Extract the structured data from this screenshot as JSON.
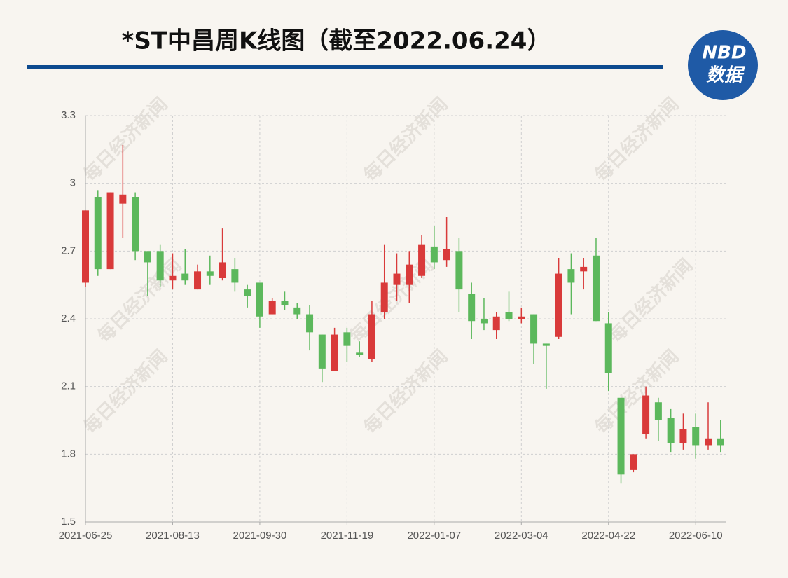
{
  "chart_data": {
    "type": "candlestick",
    "title": "*ST中昌周K线图（截至2022.06.24）",
    "logo": [
      "NBD",
      "数据"
    ],
    "watermark": "每日经济新闻",
    "categories": [
      "2021-06-25",
      null,
      null,
      null,
      null,
      null,
      null,
      "2021-08-13",
      null,
      null,
      null,
      null,
      null,
      null,
      "2021-09-30",
      null,
      null,
      null,
      null,
      null,
      null,
      "2021-11-19",
      null,
      null,
      null,
      null,
      null,
      null,
      "2022-01-07",
      null,
      null,
      null,
      null,
      null,
      null,
      "2022-03-04",
      null,
      null,
      null,
      null,
      null,
      null,
      "2022-04-22",
      null,
      null,
      null,
      null,
      null,
      null,
      "2022-06-10",
      null,
      null
    ],
    "open": [
      2.56,
      2.94,
      2.62,
      2.91,
      2.94,
      2.7,
      2.7,
      2.57,
      2.6,
      2.53,
      2.61,
      2.58,
      2.62,
      2.53,
      2.56,
      2.42,
      2.48,
      2.45,
      2.42,
      2.33,
      2.17,
      2.34,
      2.25,
      2.22,
      2.43,
      2.55,
      2.55,
      2.59,
      2.72,
      2.66,
      2.7,
      2.51,
      2.4,
      2.35,
      2.43,
      2.4,
      2.42,
      2.29,
      2.32,
      2.62,
      2.61,
      2.68,
      2.38,
      2.05,
      1.73,
      1.89,
      2.03,
      1.96,
      1.85,
      1.92,
      1.84,
      1.87
    ],
    "high": [
      2.88,
      2.97,
      2.96,
      3.17,
      2.96,
      2.7,
      2.73,
      2.69,
      2.71,
      2.64,
      2.68,
      2.8,
      2.67,
      2.55,
      2.56,
      2.49,
      2.52,
      2.47,
      2.46,
      2.33,
      2.36,
      2.36,
      2.3,
      2.48,
      2.73,
      2.69,
      2.7,
      2.77,
      2.81,
      2.85,
      2.76,
      2.56,
      2.49,
      2.43,
      2.52,
      2.45,
      2.42,
      2.29,
      2.67,
      2.69,
      2.67,
      2.76,
      2.43,
      2.05,
      1.8,
      2.1,
      2.05,
      2.0,
      1.98,
      1.98,
      2.03,
      1.95
    ],
    "low": [
      2.54,
      2.59,
      2.62,
      2.76,
      2.66,
      2.5,
      2.54,
      2.53,
      2.55,
      2.53,
      2.55,
      2.57,
      2.52,
      2.45,
      2.36,
      2.42,
      2.44,
      2.4,
      2.26,
      2.12,
      2.17,
      2.21,
      2.23,
      2.21,
      2.4,
      2.48,
      2.47,
      2.58,
      2.62,
      2.63,
      2.43,
      2.31,
      2.35,
      2.31,
      2.39,
      2.38,
      2.2,
      2.09,
      2.31,
      2.42,
      2.53,
      2.39,
      2.08,
      1.67,
      1.72,
      1.87,
      1.86,
      1.81,
      1.82,
      1.78,
      1.82,
      1.81
    ],
    "close": [
      2.88,
      2.62,
      2.96,
      2.95,
      2.7,
      2.65,
      2.57,
      2.59,
      2.57,
      2.61,
      2.59,
      2.65,
      2.56,
      2.5,
      2.41,
      2.48,
      2.46,
      2.42,
      2.34,
      2.18,
      2.33,
      2.28,
      2.24,
      2.42,
      2.56,
      2.6,
      2.64,
      2.73,
      2.65,
      2.71,
      2.53,
      2.39,
      2.38,
      2.41,
      2.4,
      2.41,
      2.29,
      2.28,
      2.6,
      2.56,
      2.63,
      2.39,
      2.16,
      1.71,
      1.8,
      2.06,
      1.95,
      1.85,
      1.91,
      1.84,
      1.87,
      1.84
    ],
    "up_color": "#d93a3a",
    "down_color": "#5cb85c",
    "ylim": [
      1.5,
      3.3
    ],
    "yticks": [
      1.5,
      1.8,
      2.1,
      2.4,
      2.7,
      3,
      3.3
    ],
    "grid": true
  }
}
